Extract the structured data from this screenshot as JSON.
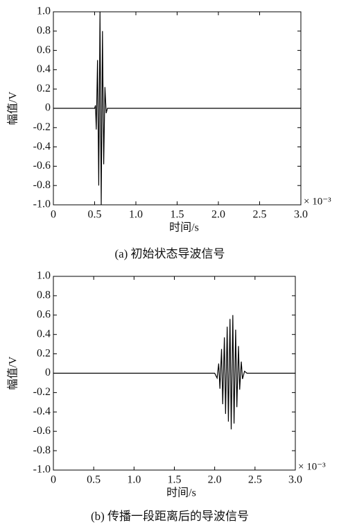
{
  "chart_data": [
    {
      "type": "line",
      "caption": "(a) 初始状态导波信号",
      "xlabel": "时间/s",
      "ylabel": "幅值/V",
      "x_multiplier": "× 10⁻³",
      "color": "#000000",
      "x": [
        0,
        0.5,
        0.51,
        0.52,
        0.535,
        0.55,
        0.565,
        0.58,
        0.595,
        0.61,
        0.625,
        0.64,
        0.655,
        0.67,
        3.0
      ],
      "values": [
        0,
        0,
        0.03,
        -0.22,
        0.5,
        -0.8,
        1.0,
        -1.0,
        0.8,
        -0.58,
        0.22,
        -0.05,
        0,
        0,
        0
      ],
      "xlim": [
        0,
        3.0
      ],
      "ylim": [
        -1.0,
        1.0
      ],
      "xticks": [
        0,
        0.5,
        {
          "value": 1,
          "label": "1.0"
        },
        1.5,
        {
          "value": 2,
          "label": "2.0"
        },
        2.5,
        {
          "value": 3,
          "label": "3.0"
        }
      ],
      "yticks": [
        {
          "value": 1,
          "label": "1.0"
        },
        0.8,
        0.6,
        0.4,
        0.2,
        0,
        -0.2,
        -0.4,
        -0.6,
        -0.8,
        {
          "value": -1,
          "label": "-1.0"
        }
      ]
    },
    {
      "type": "line",
      "caption": "(b) 传播一段距离后的导波信号",
      "xlabel": "时间/s",
      "ylabel": "幅值/V",
      "x_multiplier": "× 10⁻³",
      "color": "#000000",
      "x": [
        0,
        2.0,
        2.03,
        2.05,
        2.065,
        2.085,
        2.1,
        2.12,
        2.135,
        2.155,
        2.17,
        2.19,
        2.205,
        2.225,
        2.24,
        2.26,
        2.275,
        2.295,
        2.31,
        2.33,
        2.345,
        2.37,
        2.4,
        3.0
      ],
      "values": [
        0,
        0,
        -0.05,
        0.1,
        -0.16,
        0.25,
        -0.32,
        0.37,
        -0.42,
        0.48,
        -0.5,
        0.56,
        -0.58,
        0.6,
        -0.52,
        0.45,
        -0.35,
        0.28,
        -0.17,
        0.12,
        -0.06,
        0.02,
        0,
        0
      ],
      "xlim": [
        0,
        3.0
      ],
      "ylim": [
        -1.0,
        1.0
      ],
      "xticks": [
        0,
        0.5,
        {
          "value": 1,
          "label": "1.0"
        },
        1.5,
        {
          "value": 2,
          "label": "2.0"
        },
        2.5,
        {
          "value": 3,
          "label": "3.0"
        }
      ],
      "yticks": [
        {
          "value": 1,
          "label": "1.0"
        },
        0.8,
        0.6,
        0.4,
        0.2,
        0,
        -0.2,
        -0.4,
        -0.6,
        -0.8,
        {
          "value": -1,
          "label": "-1.0"
        }
      ]
    }
  ]
}
